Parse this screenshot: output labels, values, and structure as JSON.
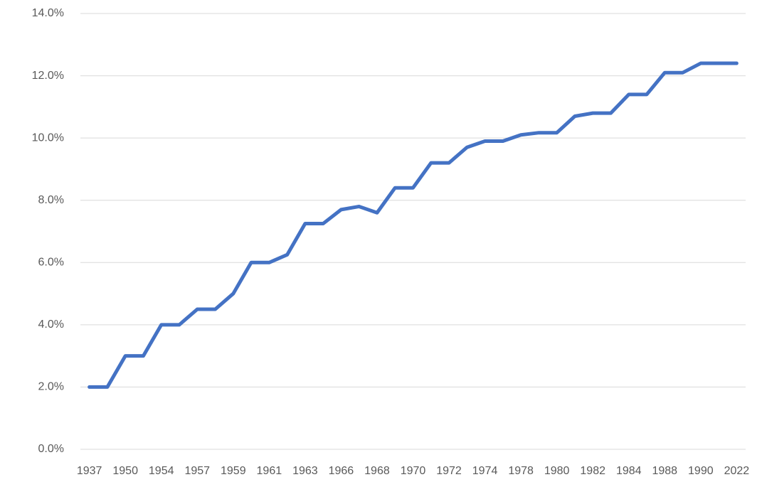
{
  "chart_data": {
    "type": "line",
    "categories": [
      "1937",
      null,
      "1950",
      null,
      "1954",
      null,
      "1957",
      null,
      "1959",
      null,
      "1961",
      null,
      "1963",
      null,
      "1966",
      null,
      "1968",
      null,
      "1970",
      null,
      "1972",
      null,
      "1974",
      null,
      "1978",
      null,
      "1980",
      null,
      "1982",
      null,
      "1984",
      null,
      "1988",
      null,
      "1990",
      null,
      "2022"
    ],
    "series": [
      {
        "color": "#4472c4",
        "values": [
          2.0,
          2.0,
          3.0,
          3.0,
          4.0,
          4.0,
          4.5,
          4.5,
          5.0,
          6.0,
          6.0,
          6.25,
          7.25,
          7.25,
          7.7,
          7.8,
          7.6,
          8.4,
          8.4,
          9.2,
          9.2,
          9.7,
          9.9,
          9.9,
          10.1,
          10.17,
          10.17,
          10.7,
          10.8,
          10.8,
          11.4,
          11.4,
          12.1,
          12.1,
          12.4,
          12.4,
          12.4
        ]
      }
    ],
    "ylim": [
      0,
      14
    ],
    "yticks": [
      {
        "value": 0,
        "label": "0.0%"
      },
      {
        "value": 2,
        "label": "2.0%"
      },
      {
        "value": 4,
        "label": "4.0%"
      },
      {
        "value": 6,
        "label": "6.0%"
      },
      {
        "value": 8,
        "label": "8.0%"
      },
      {
        "value": 10,
        "label": "10.0%"
      },
      {
        "value": 12,
        "label": "12.0%"
      },
      {
        "value": 14,
        "label": "14.0%"
      }
    ],
    "grid": true
  }
}
